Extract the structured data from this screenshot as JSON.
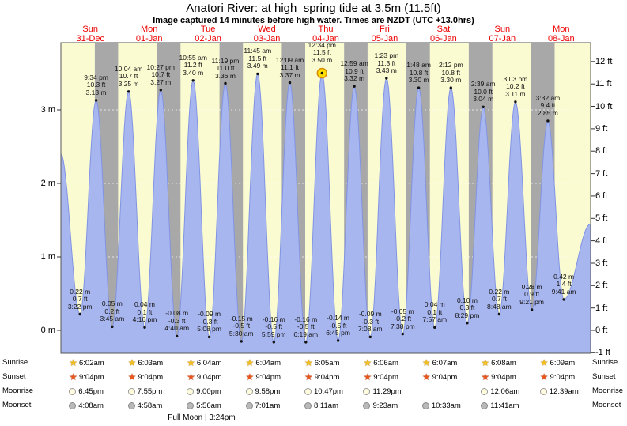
{
  "chart_data": {
    "type": "area",
    "title": "Anatori River: at high  spring tide at 3.5m (11.5ft)",
    "subtitle": "Image captured 14 minutes before high water. Times are NZDT (UTC +13.0hrs)",
    "unit_left": "m",
    "unit_right": "ft",
    "y_axis_left_ticks": [
      0,
      1,
      2,
      3
    ],
    "y_axis_right_ticks": [
      -1,
      0,
      1,
      2,
      3,
      4,
      5,
      6,
      7,
      8,
      9,
      10,
      11,
      12
    ],
    "grid": true,
    "legend": "none",
    "days": [
      {
        "name": "Sun",
        "date": "31-Dec"
      },
      {
        "name": "Mon",
        "date": "01-Jan"
      },
      {
        "name": "Tue",
        "date": "02-Jan"
      },
      {
        "name": "Wed",
        "date": "03-Jan"
      },
      {
        "name": "Thu",
        "date": "04-Jan"
      },
      {
        "name": "Fri",
        "date": "05-Jan"
      },
      {
        "name": "Sat",
        "date": "06-Jan"
      },
      {
        "name": "Sun",
        "date": "07-Jan"
      },
      {
        "name": "Mon",
        "date": "08-Jan"
      }
    ],
    "tide_events": [
      {
        "day": 0,
        "time": "3:22 pm",
        "type": "low",
        "ft": "0.7",
        "m": "0.22"
      },
      {
        "day": 0,
        "time": "9:34 pm",
        "type": "high",
        "ft": "10.3",
        "m": "3.13"
      },
      {
        "day": 1,
        "time": "3:45 am",
        "type": "low",
        "ft": "0.2",
        "m": "0.05"
      },
      {
        "day": 1,
        "time": "10:04 am",
        "type": "high",
        "ft": "10.7",
        "m": "3.25"
      },
      {
        "day": 1,
        "time": "4:16 pm",
        "type": "low",
        "ft": "0.1",
        "m": "0.04"
      },
      {
        "day": 1,
        "time": "10:27 pm",
        "type": "high",
        "ft": "10.7",
        "m": "3.27"
      },
      {
        "day": 2,
        "time": "4:40 am",
        "type": "low",
        "ft": "-0.3",
        "m": "-0.08"
      },
      {
        "day": 2,
        "time": "10:55 am",
        "type": "high",
        "ft": "11.2",
        "m": "3.40"
      },
      {
        "day": 2,
        "time": "5:08 pm",
        "type": "low",
        "ft": "-0.3",
        "m": "-0.09"
      },
      {
        "day": 2,
        "time": "11:19 pm",
        "type": "high",
        "ft": "11.0",
        "m": "3.36"
      },
      {
        "day": 3,
        "time": "5:30 am",
        "type": "low",
        "ft": "-0.5",
        "m": "-0.15"
      },
      {
        "day": 3,
        "time": "11:45 am",
        "type": "high",
        "ft": "11.5",
        "m": "3.49"
      },
      {
        "day": 3,
        "time": "5:59 pm",
        "type": "low",
        "ft": "-0.5",
        "m": "-0.16"
      },
      {
        "day": 4,
        "time": "12:09 am",
        "type": "high",
        "ft": "11.1",
        "m": "3.37"
      },
      {
        "day": 4,
        "time": "6:19 am",
        "type": "low",
        "ft": "-0.5",
        "m": "-0.16"
      },
      {
        "day": 4,
        "time": "12:34 pm",
        "type": "high",
        "ft": "11.5",
        "m": "3.50",
        "marker": "sun"
      },
      {
        "day": 4,
        "time": "6:45 pm",
        "type": "low",
        "ft": "-0.5",
        "m": "-0.14"
      },
      {
        "day": 5,
        "time": "12:59 am",
        "type": "high",
        "ft": "10.9",
        "m": "3.32"
      },
      {
        "day": 5,
        "time": "7:08 am",
        "type": "low",
        "ft": "-0.3",
        "m": "-0.09"
      },
      {
        "day": 5,
        "time": "1:23 pm",
        "type": "high",
        "ft": "11.3",
        "m": "3.43"
      },
      {
        "day": 5,
        "time": "7:38 pm",
        "type": "low",
        "ft": "-0.2",
        "m": "-0.05"
      },
      {
        "day": 6,
        "time": "1:48 am",
        "type": "high",
        "ft": "10.8",
        "m": "3.30"
      },
      {
        "day": 6,
        "time": "7:57 am",
        "type": "low",
        "ft": "0.1",
        "m": "0.04"
      },
      {
        "day": 6,
        "time": "2:12 pm",
        "type": "high",
        "ft": "10.8",
        "m": "3.30"
      },
      {
        "day": 6,
        "time": "8:29 pm",
        "type": "low",
        "ft": "0.3",
        "m": "0.10"
      },
      {
        "day": 7,
        "time": "2:39 am",
        "type": "high",
        "ft": "10.0",
        "m": "3.04"
      },
      {
        "day": 7,
        "time": "8:48 am",
        "type": "low",
        "ft": "0.7",
        "m": "0.22"
      },
      {
        "day": 7,
        "time": "3:03 pm",
        "type": "high",
        "ft": "10.2",
        "m": "3.11"
      },
      {
        "day": 7,
        "time": "9:21 pm",
        "type": "low",
        "ft": "0.9",
        "m": "0.28"
      },
      {
        "day": 8,
        "time": "3:32 am",
        "type": "high",
        "ft": "9.4",
        "m": "2.85"
      },
      {
        "day": 8,
        "time": "9:41 am",
        "type": "low",
        "ft": "1.4",
        "m": "0.42"
      }
    ]
  },
  "astro": {
    "sunrise": {
      "label": "Sunrise",
      "icon": "sunrise-star-icon",
      "times": [
        "6:02am",
        "6:03am",
        "6:04am",
        "6:04am",
        "6:05am",
        "6:06am",
        "6:07am",
        "6:08am",
        "6:09am"
      ]
    },
    "sunset": {
      "label": "Sunset",
      "icon": "sunset-star-icon",
      "times": [
        "9:04pm",
        "9:04pm",
        "9:04pm",
        "9:04pm",
        "9:04pm",
        "9:04pm",
        "9:04pm",
        "9:04pm",
        "9:04pm"
      ]
    },
    "moonrise": {
      "label": "Moonrise",
      "icon": "moonrise-icon",
      "entries": [
        {
          "day": 0,
          "time": "6:45pm"
        },
        {
          "day": 1,
          "time": "7:55pm"
        },
        {
          "day": 2,
          "time": "9:00pm"
        },
        {
          "day": 3,
          "time": "9:58pm"
        },
        {
          "day": 4,
          "time": "10:47pm"
        },
        {
          "day": 5,
          "time": "11:29pm"
        },
        {
          "day": 7,
          "time": "12:06am"
        },
        {
          "day": 8,
          "time": "12:39am"
        }
      ]
    },
    "moonset": {
      "label": "Moonset",
      "icon": "moonset-icon",
      "entries": [
        {
          "day": 0,
          "time": "4:08am"
        },
        {
          "day": 1,
          "time": "4:58am"
        },
        {
          "day": 2,
          "time": "5:56am"
        },
        {
          "day": 3,
          "time": "7:01am"
        },
        {
          "day": 4,
          "time": "8:11am"
        },
        {
          "day": 5,
          "time": "9:23am"
        },
        {
          "day": 6,
          "time": "10:33am"
        },
        {
          "day": 7,
          "time": "11:41am"
        }
      ]
    },
    "full_moon": "Full Moon | 3:24pm"
  },
  "colors": {
    "day_band": "#fbfbd2",
    "night_band": "#a8a8a8",
    "tide_fill": "#a8b6ef",
    "tide_stroke": "#8194e4",
    "day_label": "#ee0000",
    "sunrise_star": "#f2c01d",
    "sunset_star": "#e8571d",
    "moonrise_fill": "#fffbdd",
    "moonset_fill": "#b9b9b9",
    "sun_marker": "#ffdf00",
    "sun_marker_ring": "#d98b00"
  }
}
